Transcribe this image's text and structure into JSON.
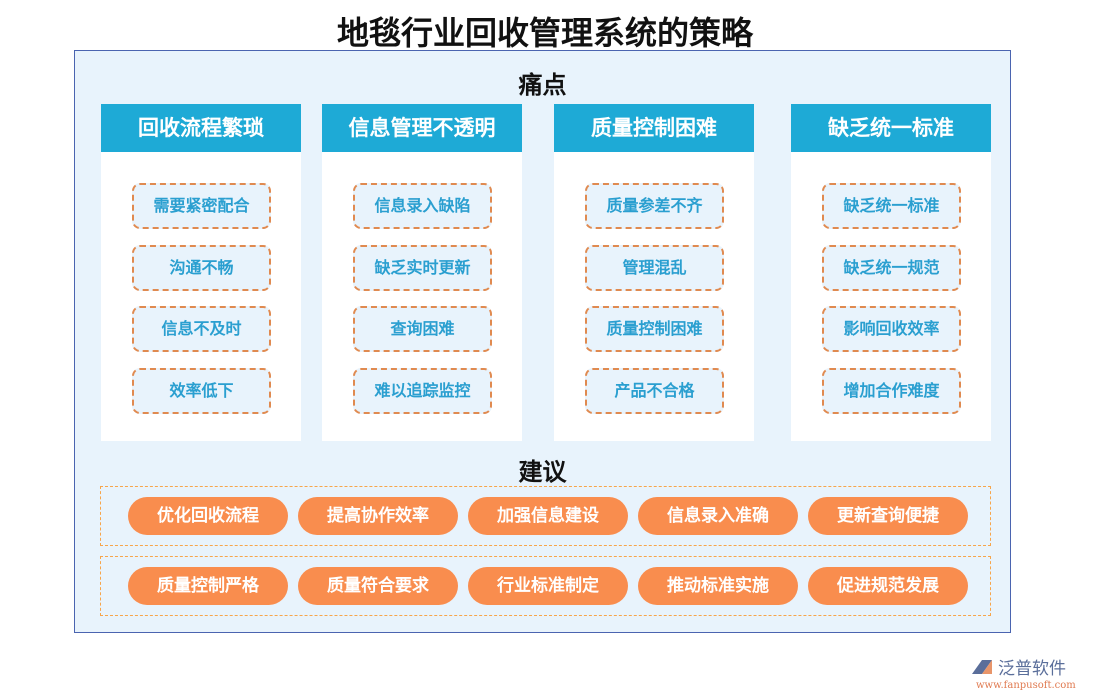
{
  "title": "地毯行业回收管理系统的策略",
  "pain_label": "痛点",
  "pain_points": [
    {
      "header": "回收流程繁琐",
      "items": [
        "需要紧密配合",
        "沟通不畅",
        "信息不及时",
        "效率低下"
      ]
    },
    {
      "header": "信息管理不透明",
      "items": [
        "信息录入缺陷",
        "缺乏实时更新",
        "查询困难",
        "难以追踪监控"
      ]
    },
    {
      "header": "质量控制困难",
      "items": [
        "质量参差不齐",
        "管理混乱",
        "质量控制困难",
        "产品不合格"
      ]
    },
    {
      "header": "缺乏统一标准",
      "items": [
        "缺乏统一标准",
        "缺乏统一规范",
        "影响回收效率",
        "增加合作难度"
      ]
    }
  ],
  "suggest_label": "建议",
  "suggestions": [
    [
      "优化回收流程",
      "提高协作效率",
      "加强信息建设",
      "信息录入准确",
      "更新查询便捷"
    ],
    [
      "质量控制严格",
      "质量符合要求",
      "行业标准制定",
      "推动标准实施",
      "促进规范发展"
    ]
  ],
  "logo": {
    "name": "泛普软件",
    "url": "www.fanpusoft.com"
  },
  "colors": {
    "header": "#1eaad6",
    "pill": "#f98d4e",
    "panel": "#e8f3fc"
  }
}
